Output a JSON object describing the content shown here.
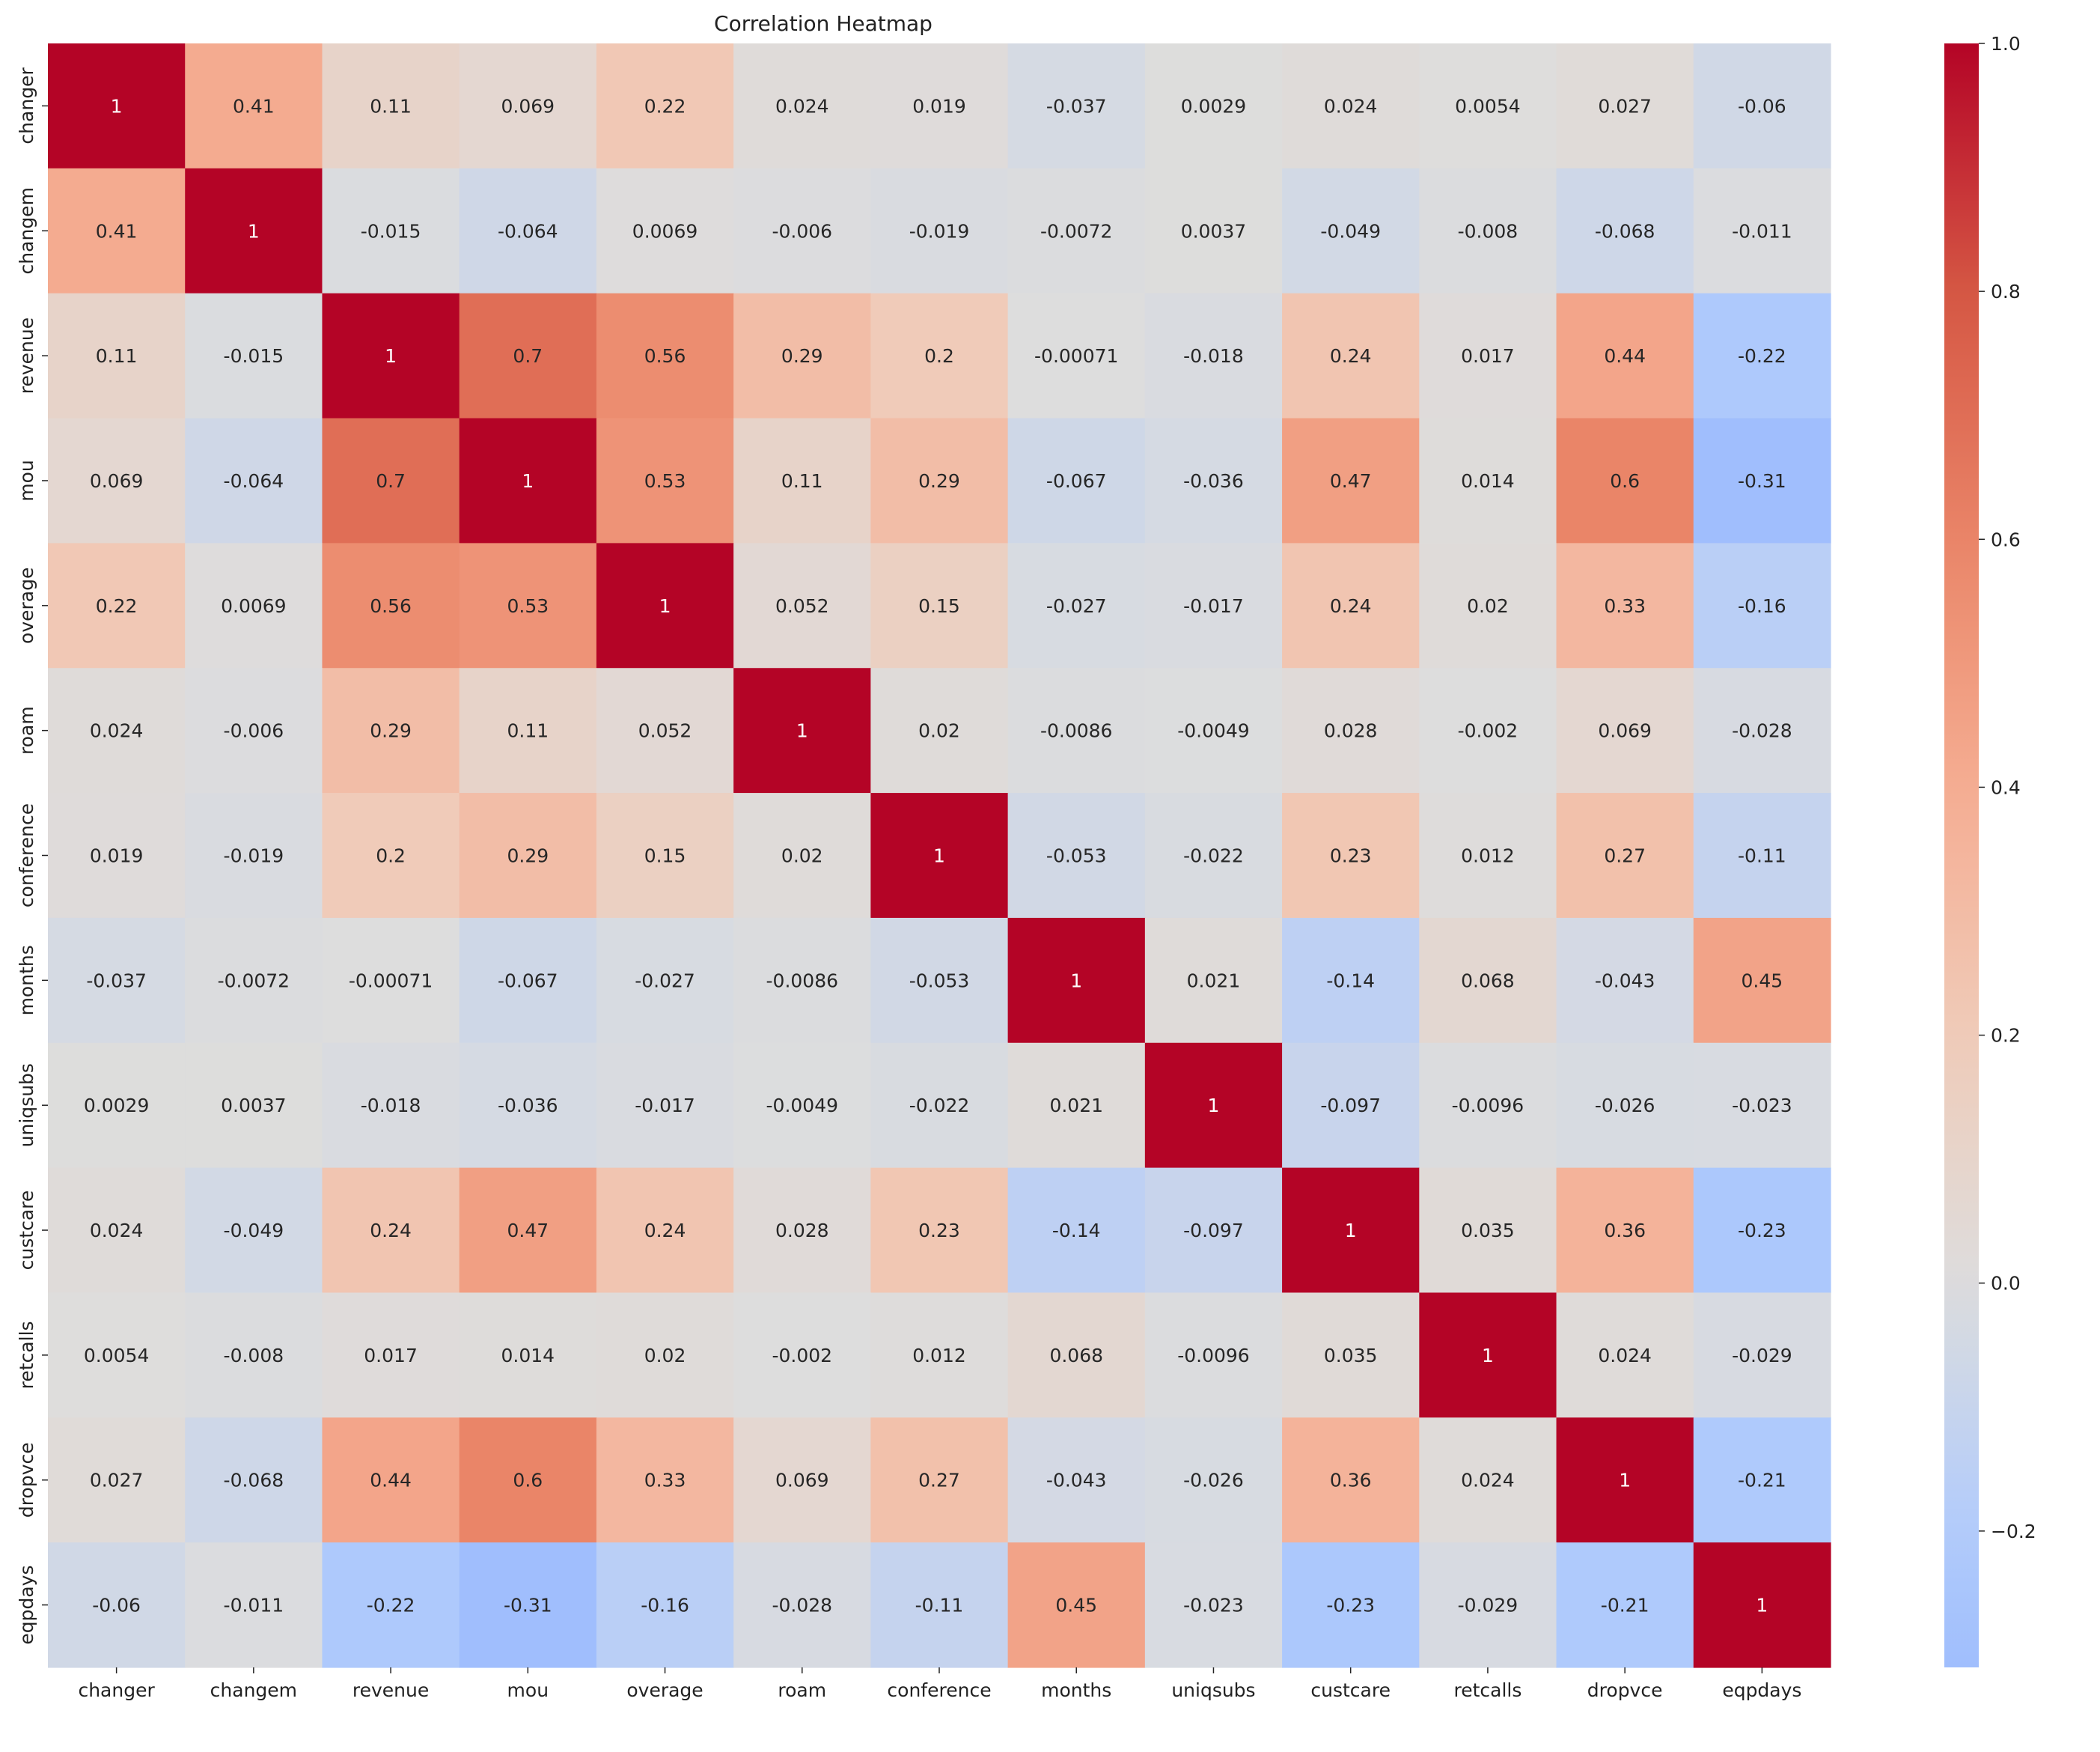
{
  "chart_data": {
    "type": "heatmap",
    "title": "Correlation Heatmap",
    "xlabel": "",
    "ylabel": "",
    "labels": [
      "changer",
      "changem",
      "revenue",
      "mou",
      "overage",
      "roam",
      "conference",
      "months",
      "uniqsubs",
      "custcare",
      "retcalls",
      "dropvce",
      "eqpdays"
    ],
    "matrix": [
      [
        1,
        0.41,
        0.11,
        0.069,
        0.22,
        0.024,
        0.019,
        -0.037,
        0.0029,
        0.024,
        0.0054,
        0.027,
        -0.06
      ],
      [
        0.41,
        1,
        -0.015,
        -0.064,
        0.0069,
        -0.006,
        -0.019,
        -0.0072,
        0.0037,
        -0.049,
        -0.008,
        -0.068,
        -0.011
      ],
      [
        0.11,
        -0.015,
        1,
        0.7,
        0.56,
        0.29,
        0.2,
        -0.00071,
        -0.018,
        0.24,
        0.017,
        0.44,
        -0.22
      ],
      [
        0.069,
        -0.064,
        0.7,
        1,
        0.53,
        0.11,
        0.29,
        -0.067,
        -0.036,
        0.47,
        0.014,
        0.6,
        -0.31
      ],
      [
        0.22,
        0.0069,
        0.56,
        0.53,
        1,
        0.052,
        0.15,
        -0.027,
        -0.017,
        0.24,
        0.02,
        0.33,
        -0.16
      ],
      [
        0.024,
        -0.006,
        0.29,
        0.11,
        0.052,
        1,
        0.02,
        -0.0086,
        -0.0049,
        0.028,
        -0.002,
        0.069,
        -0.028
      ],
      [
        0.019,
        -0.019,
        0.2,
        0.29,
        0.15,
        0.02,
        1,
        -0.053,
        -0.022,
        0.23,
        0.012,
        0.27,
        -0.11
      ],
      [
        -0.037,
        -0.0072,
        -0.00071,
        -0.067,
        -0.027,
        -0.0086,
        -0.053,
        1,
        0.021,
        -0.14,
        0.068,
        -0.043,
        0.45
      ],
      [
        0.0029,
        0.0037,
        -0.018,
        -0.036,
        -0.017,
        -0.0049,
        -0.022,
        0.021,
        1,
        -0.097,
        -0.0096,
        -0.026,
        -0.023
      ],
      [
        0.024,
        -0.049,
        0.24,
        0.47,
        0.24,
        0.028,
        0.23,
        -0.14,
        -0.097,
        1,
        0.035,
        0.36,
        -0.23
      ],
      [
        0.0054,
        -0.008,
        0.017,
        0.014,
        0.02,
        -0.002,
        0.012,
        0.068,
        -0.0096,
        0.035,
        1,
        0.024,
        -0.029
      ],
      [
        0.027,
        -0.068,
        0.44,
        0.6,
        0.33,
        0.069,
        0.27,
        -0.043,
        -0.026,
        0.36,
        0.024,
        1,
        -0.21
      ],
      [
        -0.06,
        -0.011,
        -0.22,
        -0.31,
        -0.16,
        -0.028,
        -0.11,
        0.45,
        -0.023,
        -0.23,
        -0.029,
        -0.21,
        1
      ]
    ],
    "colormap": "coolwarm",
    "center": 0,
    "vmin": -0.31,
    "vmax": 1,
    "colorbar_ticks": [
      1.0,
      0.8,
      0.6,
      0.4,
      0.2,
      0.0,
      -0.2
    ],
    "colorbar_tick_labels": [
      "1.0",
      "0.8",
      "0.6",
      "0.4",
      "0.2",
      "0.0",
      "−0.2"
    ],
    "annotations": true,
    "grid": false,
    "legend": "colorbar-right"
  }
}
